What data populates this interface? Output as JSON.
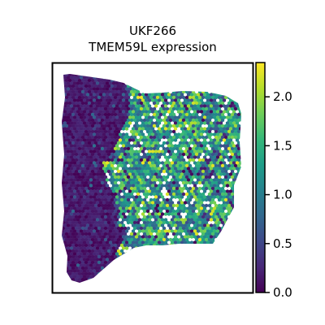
{
  "chart_data": {
    "type": "heatmap",
    "subtype": "spatial hexbin expression map",
    "title_lines": [
      "UKF266",
      "TMEM59L expression"
    ],
    "xlabel": "",
    "ylabel": "",
    "colormap": "viridis",
    "colorbar": {
      "range": [
        0.0,
        2.35
      ],
      "ticks": [
        0.0,
        0.5,
        1.0,
        1.5,
        2.0
      ],
      "tick_labels": [
        "0.0",
        "0.5",
        "1.0",
        "1.5",
        "2.0"
      ]
    },
    "regions": [
      {
        "name": "left",
        "typical_value": 0.15
      },
      {
        "name": "right",
        "typical_value": 1.25
      }
    ],
    "legend": "none",
    "grid": false
  },
  "colors": {
    "viridis": [
      "#440154",
      "#482878",
      "#3e4989",
      "#31688e",
      "#26828e",
      "#1f9e89",
      "#35b779",
      "#6ece58",
      "#b5de2b",
      "#fde725"
    ],
    "frame": "#000000",
    "background": "#ffffff"
  }
}
